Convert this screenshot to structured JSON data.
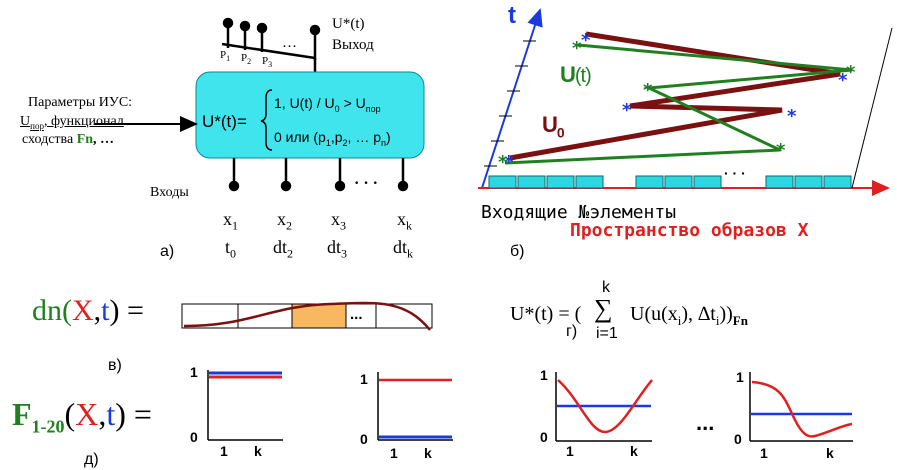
{
  "panel_a": {
    "out_label": "U*(t)",
    "out_word": "Выход",
    "pins": [
      "P",
      "P",
      "P"
    ],
    "pin_subs": [
      "1",
      "2",
      "3"
    ],
    "ellipsis": "…",
    "params_line1": "Параметры ИУС:",
    "params_line2a": "U",
    "params_line2sub": "пор",
    "params_line2b": ", функционал",
    "params_line3a": "сходства ",
    "params_line3b": "Fn",
    "params_line3c": ", …",
    "box_lhs": "U*(t)=",
    "case1": "1,  U(t) / U",
    "case1b": " > U",
    "case1sub0": "0",
    "case1sub": "пор",
    "case2": "0 или (p",
    "case2tail": ", … p",
    "case2end": ")",
    "inputs_word": "Входы",
    "x_labels": [
      "x",
      "x",
      "x",
      "x"
    ],
    "x_subs": [
      "1",
      "2",
      "3",
      "k"
    ],
    "t_labels": [
      "t",
      "dt",
      "dt",
      "dt"
    ],
    "t_subs": [
      "0",
      "2",
      "3",
      "k"
    ],
    "dots": "· · ·",
    "caption": "а)"
  },
  "panel_b": {
    "axis_t": "t",
    "u_label": "U",
    "u_paren": "(t)",
    "u0": "U",
    "u0_sub": "0",
    "bottom1": "Входящие №элементы",
    "bottom2": "Пространство образов X",
    "dots": "· · ·",
    "caption": "б)",
    "colors": {
      "axis": "#1a3ae0",
      "u": "#208020",
      "u0": "#7a1010",
      "cells": "#2ed6e0",
      "space": "#e02020"
    }
  },
  "panel_v": {
    "dn": "dn(",
    "x": "X",
    "comma": ",",
    "t": "t",
    "close": ") =",
    "cell_dots": "...",
    "caption": "в)"
  },
  "panel_g": {
    "lhs": "U*(t) = (",
    "sum": "∑",
    "sum_top": "k",
    "sum_bottom": "i=1",
    "body": "U(u(x",
    "body_sub": "i",
    "body2": "), ∆t",
    "body_end": "))",
    "fn": "Fn",
    "caption": "г)"
  },
  "panel_d": {
    "f": "F",
    "f_sub": "1-20",
    "open": "(",
    "x": "X",
    "comma": ",",
    "t": "t",
    "close": ") =",
    "caption": "д)",
    "graph_y_top": "1",
    "graph_y_bottom": "0",
    "graph_x_left": "1",
    "graph_x_right": "k",
    "gap_dots": "..."
  }
}
